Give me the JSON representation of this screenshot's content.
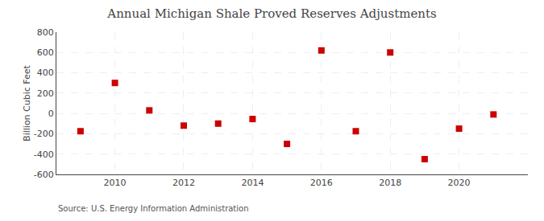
{
  "chart_data": {
    "type": "scatter",
    "title": "Annual Michigan Shale Proved Reserves Adjustments",
    "ylabel": "Billion Cubic Feet",
    "source": "Source: U.S. Energy Information Administration",
    "x": [
      2009,
      2010,
      2011,
      2012,
      2013,
      2014,
      2015,
      2016,
      2017,
      2018,
      2019,
      2020,
      2021
    ],
    "values": [
      -175,
      300,
      30,
      -120,
      -100,
      -55,
      -300,
      620,
      -175,
      600,
      -450,
      -150,
      -10
    ],
    "color": "#cc0000",
    "marker": "square",
    "xlim": [
      2008.3,
      2022.0
    ],
    "xticks": [
      2010,
      2012,
      2014,
      2016,
      2018,
      2020
    ],
    "ylim": [
      -600,
      800
    ],
    "yticks": [
      -600,
      -400,
      -200,
      0,
      200,
      400,
      600,
      800
    ],
    "grid": true
  }
}
